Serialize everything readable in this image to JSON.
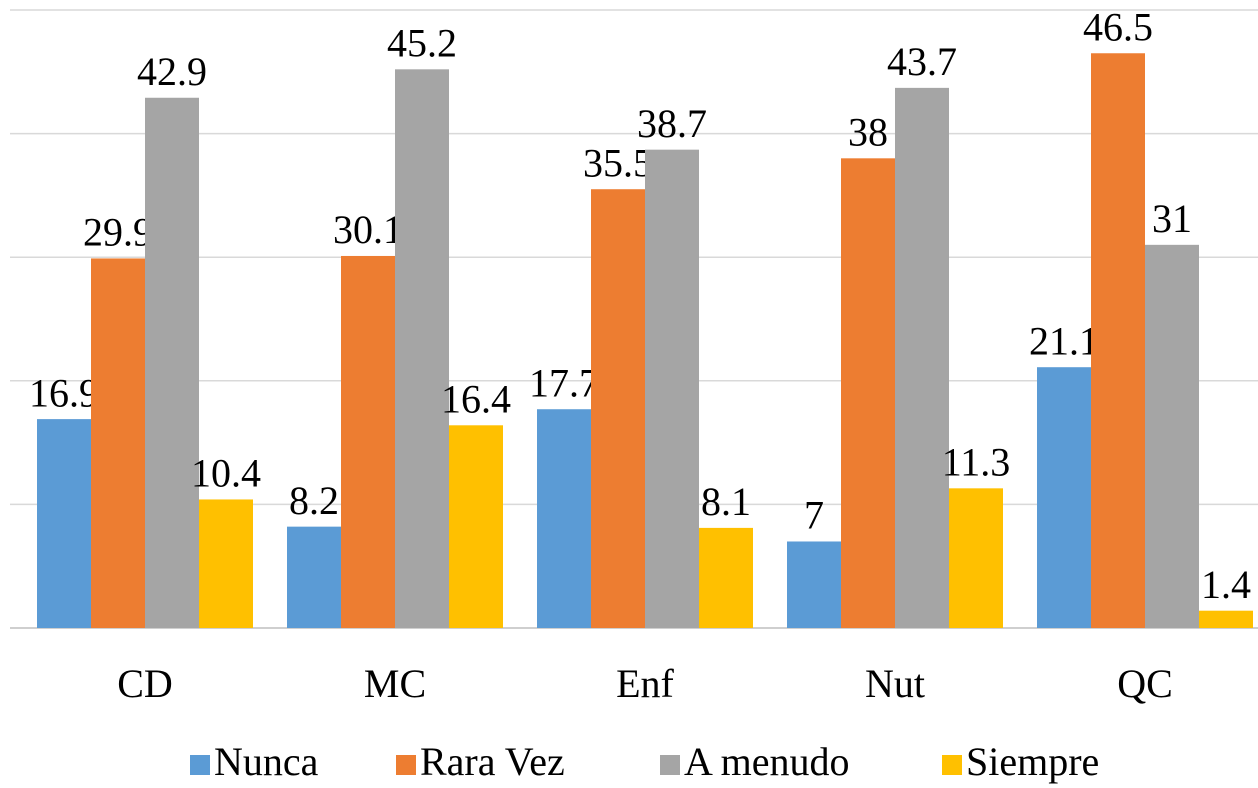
{
  "chart_data": {
    "type": "bar",
    "categories": [
      "CD",
      "MC",
      "Enf",
      "Nut",
      "QC"
    ],
    "series": [
      {
        "name": "Nunca",
        "color": "#5b9bd5",
        "values": [
          16.9,
          8.2,
          17.7,
          7,
          21.1
        ]
      },
      {
        "name": "Rara Vez",
        "color": "#ed7d31",
        "values": [
          29.9,
          30.1,
          35.5,
          38,
          46.5
        ]
      },
      {
        "name": "A menudo",
        "color": "#a5a5a5",
        "values": [
          42.9,
          45.2,
          38.7,
          43.7,
          31
        ]
      },
      {
        "name": "Siempre",
        "color": "#ffc000",
        "values": [
          10.4,
          16.4,
          8.1,
          11.3,
          1.4
        ]
      }
    ],
    "ylim": [
      0,
      50
    ],
    "yticks": [
      0,
      10,
      20,
      30,
      40,
      50
    ],
    "grid": true,
    "legend": "bottom"
  }
}
